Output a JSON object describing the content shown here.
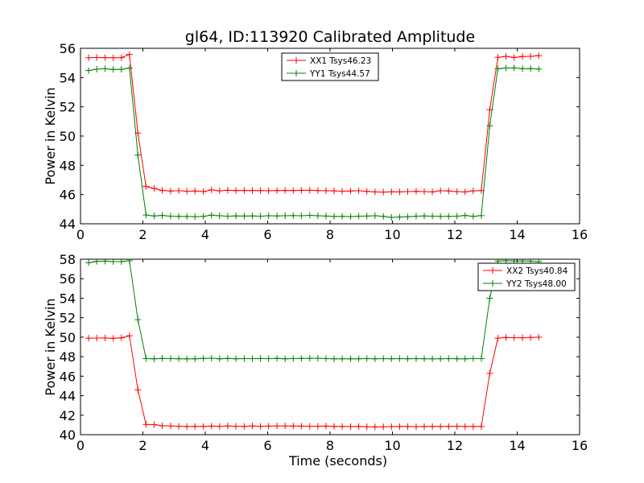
{
  "figure": {
    "title": "gl64, ID:113920 Calibrated Amplitude"
  },
  "chart_data": [
    {
      "type": "line",
      "title": "gl64, ID:113920 Calibrated Amplitude",
      "xlabel": "",
      "ylabel": "Power in Kelvin",
      "xlim": [
        0,
        16
      ],
      "ylim": [
        44,
        56
      ],
      "xticks": [
        "0",
        "2",
        "4",
        "6",
        "8",
        "10",
        "12",
        "14",
        "16"
      ],
      "yticks": [
        "44",
        "46",
        "48",
        "50",
        "52",
        "54",
        "56"
      ],
      "grid": false,
      "legend_position": "top-center",
      "x": [
        0.26,
        0.52,
        0.79,
        1.05,
        1.31,
        1.57,
        1.84,
        2.1,
        2.36,
        2.62,
        2.89,
        3.15,
        3.41,
        3.67,
        3.94,
        4.2,
        4.46,
        4.72,
        4.98,
        5.25,
        5.51,
        5.77,
        6.03,
        6.3,
        6.56,
        6.82,
        7.08,
        7.35,
        7.61,
        7.87,
        8.13,
        8.39,
        8.66,
        8.92,
        9.18,
        9.44,
        9.71,
        9.97,
        10.23,
        10.49,
        10.76,
        11.02,
        11.28,
        11.54,
        11.8,
        12.07,
        12.33,
        12.59,
        12.85,
        13.12,
        13.38,
        13.64,
        13.9,
        14.17,
        14.43,
        14.69
      ],
      "series": [
        {
          "name": "XX1 Tsys46.23",
          "color": "#ff0000",
          "values": [
            55.35,
            55.37,
            55.36,
            55.35,
            55.36,
            55.58,
            50.2,
            46.55,
            46.42,
            46.28,
            46.24,
            46.26,
            46.23,
            46.24,
            46.2,
            46.32,
            46.25,
            46.29,
            46.27,
            46.28,
            46.27,
            46.27,
            46.26,
            46.27,
            46.28,
            46.27,
            46.29,
            46.29,
            46.27,
            46.26,
            46.25,
            46.23,
            46.24,
            46.26,
            46.22,
            46.18,
            46.17,
            46.19,
            46.18,
            46.2,
            46.22,
            46.2,
            46.18,
            46.26,
            46.24,
            46.2,
            46.18,
            46.25,
            46.27,
            51.8,
            55.38,
            55.45,
            55.37,
            55.44,
            55.45,
            55.5
          ]
        },
        {
          "name": "YY1 Tsys44.57",
          "color": "#008000",
          "values": [
            54.48,
            54.57,
            54.6,
            54.55,
            54.56,
            54.65,
            48.7,
            44.6,
            44.54,
            44.57,
            44.52,
            44.51,
            44.5,
            44.49,
            44.51,
            44.59,
            44.55,
            44.52,
            44.54,
            44.53,
            44.54,
            44.52,
            44.55,
            44.54,
            44.55,
            44.56,
            44.55,
            44.58,
            44.55,
            44.53,
            44.5,
            44.51,
            44.49,
            44.52,
            44.53,
            44.55,
            44.51,
            44.44,
            44.46,
            44.48,
            44.52,
            44.54,
            44.52,
            44.51,
            44.51,
            44.52,
            44.57,
            44.51,
            44.56,
            50.7,
            54.6,
            54.65,
            54.66,
            54.6,
            54.61,
            54.58
          ]
        }
      ]
    },
    {
      "type": "line",
      "title": "",
      "xlabel": "Time (seconds)",
      "ylabel": "Power in Kelvin",
      "xlim": [
        0,
        16
      ],
      "ylim": [
        40,
        58
      ],
      "xticks": [
        "0",
        "2",
        "4",
        "6",
        "8",
        "10",
        "12",
        "14",
        "16"
      ],
      "yticks": [
        "40",
        "42",
        "44",
        "46",
        "48",
        "50",
        "52",
        "54",
        "56",
        "58"
      ],
      "grid": false,
      "legend_position": "top-right",
      "x": [
        0.26,
        0.52,
        0.79,
        1.05,
        1.31,
        1.57,
        1.84,
        2.1,
        2.36,
        2.62,
        2.89,
        3.15,
        3.41,
        3.67,
        3.94,
        4.2,
        4.46,
        4.72,
        4.98,
        5.25,
        5.51,
        5.77,
        6.03,
        6.3,
        6.56,
        6.82,
        7.08,
        7.35,
        7.61,
        7.87,
        8.13,
        8.39,
        8.66,
        8.92,
        9.18,
        9.44,
        9.71,
        9.97,
        10.23,
        10.49,
        10.76,
        11.02,
        11.28,
        11.54,
        11.8,
        12.07,
        12.33,
        12.59,
        12.85,
        13.12,
        13.38,
        13.64,
        13.9,
        14.17,
        14.43,
        14.69
      ],
      "series": [
        {
          "name": "XX2 Tsys40.84",
          "color": "#ff0000",
          "values": [
            49.9,
            49.91,
            49.92,
            49.88,
            49.94,
            50.15,
            44.6,
            41.05,
            41.03,
            40.92,
            40.9,
            40.87,
            40.84,
            40.85,
            40.85,
            40.88,
            40.86,
            40.9,
            40.87,
            40.85,
            40.9,
            40.86,
            40.88,
            40.9,
            40.9,
            40.89,
            40.88,
            40.87,
            40.87,
            40.88,
            40.85,
            40.85,
            40.83,
            40.85,
            40.82,
            40.8,
            40.82,
            40.83,
            40.84,
            40.84,
            40.82,
            40.84,
            40.85,
            40.84,
            40.85,
            40.86,
            40.85,
            40.84,
            40.84,
            46.3,
            49.9,
            49.97,
            49.95,
            49.94,
            49.97,
            50.0
          ]
        },
        {
          "name": "YY2 Tsys48.00",
          "color": "#008000",
          "values": [
            57.65,
            57.78,
            57.8,
            57.75,
            57.76,
            57.85,
            51.8,
            47.8,
            47.78,
            47.82,
            47.8,
            47.79,
            47.78,
            47.78,
            47.82,
            47.84,
            47.78,
            47.82,
            47.79,
            47.8,
            47.8,
            47.81,
            47.8,
            47.82,
            47.78,
            47.8,
            47.82,
            47.83,
            47.84,
            47.8,
            47.78,
            47.79,
            47.78,
            47.79,
            47.8,
            47.78,
            47.8,
            47.79,
            47.8,
            47.79,
            47.8,
            47.79,
            47.78,
            47.79,
            47.8,
            47.79,
            47.78,
            47.8,
            47.8,
            54.0,
            57.8,
            57.85,
            57.82,
            57.82,
            57.8,
            57.75
          ]
        }
      ]
    }
  ]
}
